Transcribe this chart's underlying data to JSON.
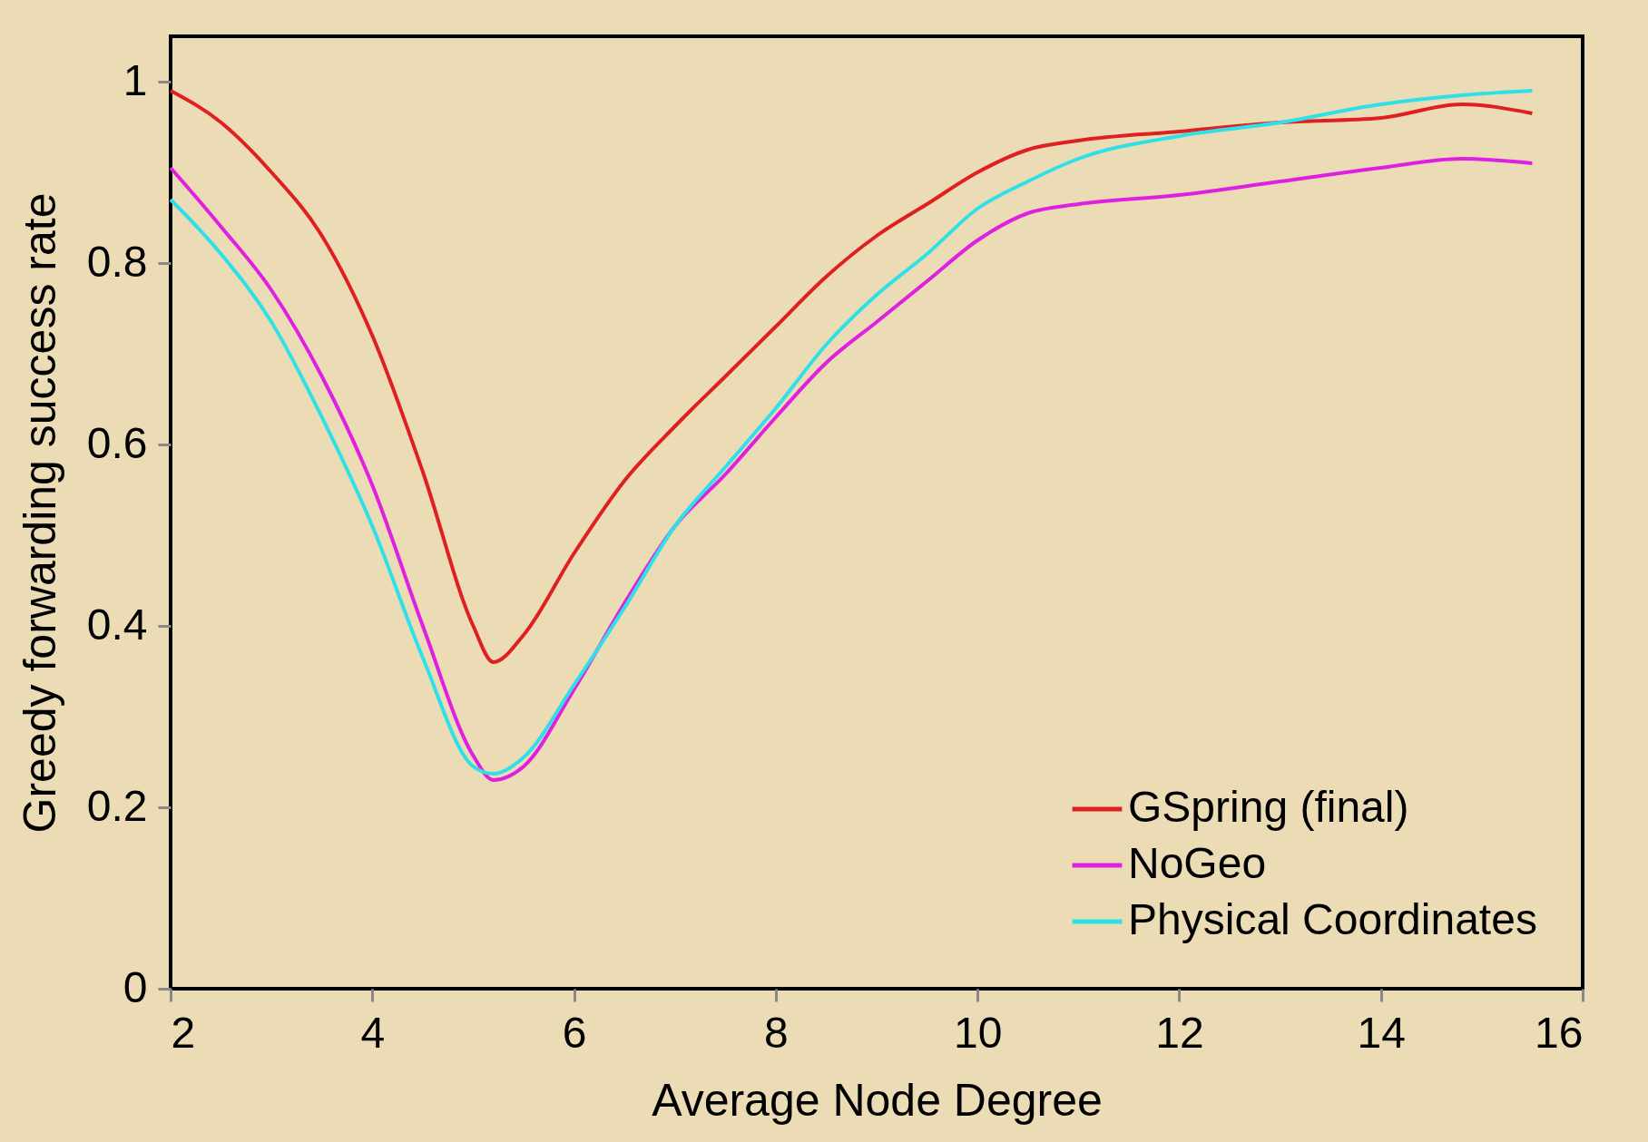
{
  "chart_data": {
    "type": "line",
    "xlabel": "Average Node Degree",
    "ylabel": "Greedy forwarding success rate",
    "x": [
      2,
      2.5,
      3,
      3.5,
      4,
      4.5,
      5,
      5.2,
      5.5,
      6,
      6.5,
      7,
      7.5,
      8,
      8.5,
      9,
      9.5,
      10,
      10.5,
      11,
      12,
      13,
      14,
      14.8,
      15.5
    ],
    "series": [
      {
        "name": "GSpring (final)",
        "color": "#e02020",
        "values": [
          0.99,
          0.955,
          0.9,
          0.83,
          0.72,
          0.57,
          0.4,
          0.36,
          0.39,
          0.48,
          0.56,
          0.62,
          0.675,
          0.73,
          0.785,
          0.83,
          0.865,
          0.9,
          0.925,
          0.935,
          0.945,
          0.955,
          0.96,
          0.975,
          0.965
        ]
      },
      {
        "name": "NoGeo",
        "color": "#e020e0",
        "values": [
          0.905,
          0.84,
          0.77,
          0.675,
          0.555,
          0.4,
          0.257,
          0.23,
          0.245,
          0.33,
          0.425,
          0.51,
          0.567,
          0.63,
          0.69,
          0.735,
          0.78,
          0.825,
          0.855,
          0.865,
          0.875,
          0.89,
          0.905,
          0.915,
          0.91
        ]
      },
      {
        "name": "Physical Coordinates",
        "color": "#30e0e8",
        "values": [
          0.87,
          0.81,
          0.735,
          0.63,
          0.51,
          0.365,
          0.245,
          0.237,
          0.255,
          0.335,
          0.42,
          0.51,
          0.575,
          0.64,
          0.71,
          0.765,
          0.81,
          0.86,
          0.89,
          0.915,
          0.94,
          0.955,
          0.975,
          0.985,
          0.99
        ]
      }
    ],
    "xlim": [
      2,
      16
    ],
    "xticks": [
      2,
      4,
      6,
      8,
      10,
      12,
      14,
      16
    ],
    "ylim": [
      0,
      1.05
    ],
    "yticks": [
      0,
      0.2,
      0.4,
      0.6,
      0.8,
      1
    ],
    "grid": false,
    "legend": "bottom right",
    "marker": "none",
    "line_style": "solid"
  }
}
